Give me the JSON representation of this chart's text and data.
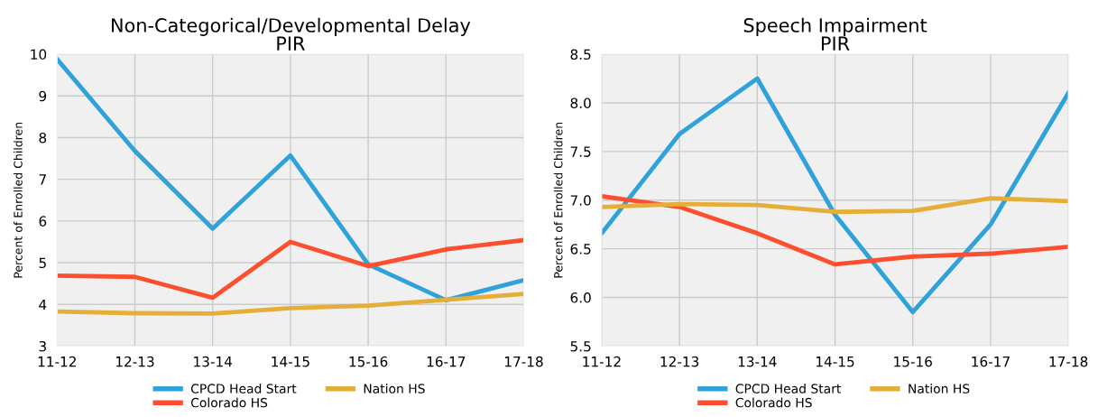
{
  "chart_data": [
    {
      "type": "line",
      "title": "Non-Categorical/Developmental Delay\nPIR",
      "ylabel": "Percent of Enrolled Children",
      "categories": [
        "11-12",
        "12-13",
        "13-14",
        "14-15",
        "15-16",
        "16-17",
        "17-18"
      ],
      "series": [
        {
          "name": "CPCD Head Start",
          "color": "#30a2da",
          "values": [
            9.88,
            7.68,
            5.82,
            7.57,
            4.96,
            4.1,
            4.58
          ]
        },
        {
          "name": "Colorado HS",
          "color": "#fc4f30",
          "values": [
            4.69,
            4.66,
            4.16,
            5.5,
            4.92,
            5.32,
            5.54
          ]
        },
        {
          "name": "Nation HS",
          "color": "#e5ae38",
          "values": [
            3.83,
            3.79,
            3.78,
            3.91,
            3.97,
            4.11,
            4.25
          ]
        }
      ],
      "ylim": [
        3,
        10
      ],
      "yticks": [
        3,
        4,
        5,
        6,
        7,
        8,
        9,
        10
      ],
      "grid": true,
      "legend": "bottom",
      "marker": "none",
      "line_style": "solid"
    },
    {
      "type": "line",
      "title": "Speech Impairment\nPIR",
      "ylabel": "Percent of Enrolled Children",
      "categories": [
        "11-12",
        "12-13",
        "13-14",
        "14-15",
        "15-16",
        "16-17",
        "17-18"
      ],
      "series": [
        {
          "name": "CPCD Head Start",
          "color": "#30a2da",
          "values": [
            6.66,
            7.68,
            8.25,
            6.85,
            5.85,
            6.75,
            8.1
          ]
        },
        {
          "name": "Colorado HS",
          "color": "#fc4f30",
          "values": [
            7.04,
            6.93,
            6.66,
            6.34,
            6.42,
            6.45,
            6.52
          ]
        },
        {
          "name": "Nation HS",
          "color": "#e5ae38",
          "values": [
            6.93,
            6.96,
            6.95,
            6.88,
            6.89,
            7.02,
            6.99
          ]
        }
      ],
      "ylim": [
        5.5,
        8.5
      ],
      "yticks": [
        {
          "value": 5.5,
          "label": "5.5"
        },
        {
          "value": 6.0,
          "label": "6.0"
        },
        {
          "value": 6.5,
          "label": "6.5"
        },
        {
          "value": 7.0,
          "label": "7.0"
        },
        {
          "value": 7.5,
          "label": "7.5"
        },
        {
          "value": 8.0,
          "label": "8.0"
        },
        {
          "value": 8.5,
          "label": "8.5"
        }
      ],
      "grid": true,
      "legend": "bottom",
      "marker": "none",
      "line_style": "solid"
    }
  ]
}
